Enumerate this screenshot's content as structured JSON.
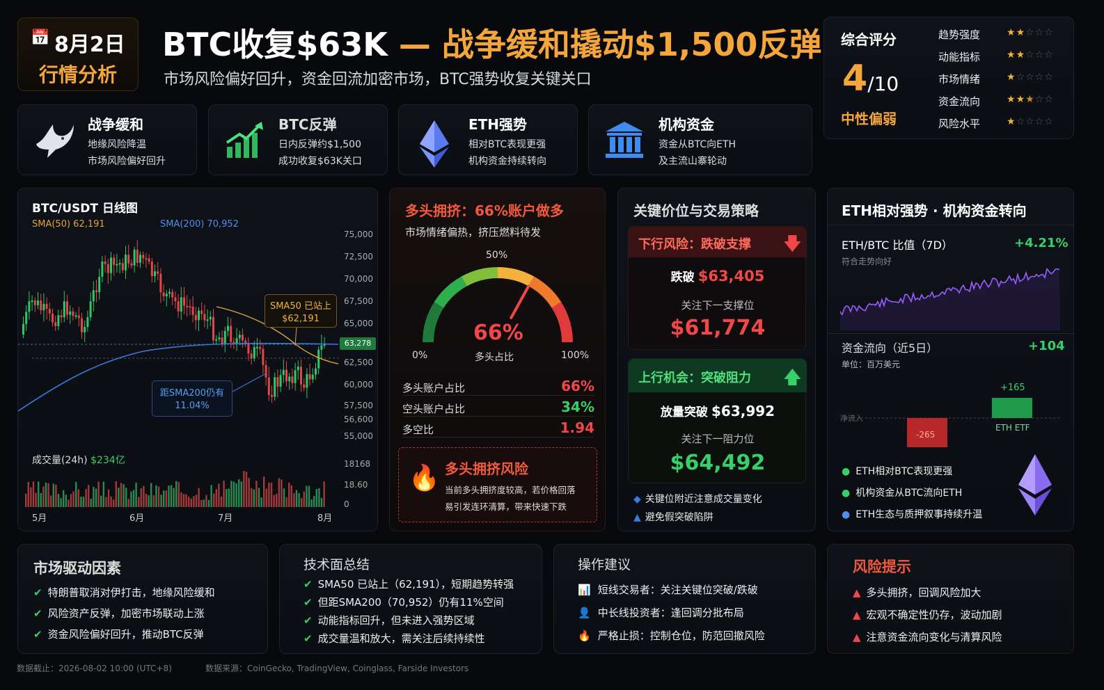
{
  "header": {
    "date": "8月2日",
    "date_sub": "行情分析",
    "title_white": "BTC收复$63K",
    "title_dash": "—",
    "title_orange": "战争缓和撬动$1,500反弹",
    "subtitle": "市场风险偏好回升，资金回流加密市场，BTC强势收复关键关口"
  },
  "score": {
    "label": "综合评分",
    "value": "4",
    "denom": "/10",
    "status": "中性偏弱",
    "metrics": [
      {
        "label": "趋势强度",
        "stars": 2
      },
      {
        "label": "动能指标",
        "stars": 2
      },
      {
        "label": "市场情绪",
        "stars": 1
      },
      {
        "label": "资金流向",
        "stars": 2.5
      },
      {
        "label": "风险水平",
        "stars": 1
      }
    ]
  },
  "highlights": [
    {
      "icon": "dove-icon",
      "title": "战争缓和",
      "line1": "地缘风险降温",
      "line2": "市场风险偏好回升"
    },
    {
      "icon": "bar-chart-up-icon",
      "title": "BTC反弹",
      "line1": "日内反弹约$1,500",
      "line2": "成功收复$63K关口"
    },
    {
      "icon": "eth-diamond-icon",
      "title": "ETH强势",
      "line1": "相对BTC表现更强",
      "line2": "机构资金持续转向"
    },
    {
      "icon": "bank-icon",
      "title": "机构资金",
      "line1": "资金从BTC向ETH",
      "line2": "及主流山寨轮动"
    }
  ],
  "btc_chart": {
    "title": "BTC/USDT 日线图",
    "sma50_label": "SMA(50)  62,191",
    "sma200_label": "SMA(200)  70,952",
    "y_ticks": [
      "75,000",
      "72,500",
      "70,000",
      "67,500",
      "65,000",
      "62,500",
      "60,000",
      "57,500",
      "56,600",
      "55,000"
    ],
    "price_tag": "63,278",
    "ann_sma50_line1": "SMA50 已站上",
    "ann_sma50_line2": "$62,191",
    "ann_sma200_line1": "距SMA200仍有",
    "ann_sma200_line2": "11.04%",
    "volume_label": "成交量(24h)",
    "volume_value": "$234亿",
    "vol_ticks": [
      "18168",
      "18.60",
      "0"
    ],
    "x_ticks": [
      "5月",
      "6月",
      "7月",
      "8月"
    ],
    "colors": {
      "up": "#2fc76a",
      "down": "#e24848",
      "sma50": "#e0a53a",
      "sma200": "#3a78d8"
    }
  },
  "sentiment": {
    "title": "多头拥挤：66%账户做多",
    "subtitle": "市场情绪偏热，挤压燃料待发",
    "gauge_top": "50%",
    "gauge_left": "0%",
    "gauge_right": "100%",
    "gauge_value": "66%",
    "gauge_value_fraction": 0.66,
    "gauge_caption": "多头占比",
    "rows": [
      {
        "label": "多头账户占比",
        "value": "66%"
      },
      {
        "label": "空头账户占比",
        "value": "34%"
      },
      {
        "label": "多空比",
        "value": "1.94"
      }
    ],
    "warn_title": "多头拥挤风险",
    "warn_line1": "当前多头拥挤度较高，若价格回落",
    "warn_line2": "易引发连环清算，带来快速下跌"
  },
  "levels": {
    "title": "关键价位与交易策略",
    "down_title": "下行风险：跌破支撑",
    "down_label": "跌破",
    "down_price": "$63,405",
    "down_next": "关注下一支撑位",
    "down_target": "$61,774",
    "up_title": "上行机会：突破阻力",
    "up_label": "放量突破",
    "up_price": "$63,992",
    "up_next": "关注下一阻力位",
    "up_target": "$64,492",
    "note1": "关键位附近注意成交量变化",
    "note2": "避免假突破陷阱"
  },
  "eth": {
    "title": "ETH相对强势 · 机构资金转向",
    "ratio_label": "ETH/BTC 比值（7D）",
    "ratio_change": "+4.21%",
    "ratio_sub": "符合走势向好",
    "flow_label": "资金流向（近5日）",
    "flow_total": "+104",
    "flow_unit": "单位：百万美元",
    "flow_axis": "净流入",
    "flow_neg_inner": "-265",
    "flow_neg_label": "-265",
    "flow_pos_label": "+165",
    "flow_pos_cat": "ETH ETF",
    "bullets": [
      "ETH相对BTC表现更强",
      "机构资金从BTC流向ETH",
      "ETH生态与质押叙事持续升温"
    ]
  },
  "drivers": {
    "title": "市场驱动因素",
    "items": [
      "特朗普取消对伊打击，地缘风险缓和",
      "风险资产反弹，加密市场联动上涨",
      "资金风险偏好回升，推动BTC反弹"
    ]
  },
  "tech": {
    "title": "技术面总结",
    "items": [
      "SMA50 已站上（62,191），短期趋势转强",
      "但距SMA200（70,952）仍有11%空间",
      "动能指标回升，但未进入强势区域",
      "成交量温和放大，需关注后续持续性"
    ]
  },
  "ops": {
    "title": "操作建议",
    "items": [
      {
        "icon": "trader-icon",
        "text": "短线交易者：关注关键位突破/跌破"
      },
      {
        "icon": "investor-icon",
        "text": "中长线投资者：逢回调分批布局"
      },
      {
        "icon": "stop-loss-icon",
        "text": "严格止损：控制仓位，防范回撤风险"
      }
    ]
  },
  "risk": {
    "title": "风险提示",
    "items": [
      "多头拥挤，回调风险加大",
      "宏观不确定性仍存，波动加剧",
      "注意资金流向变化与清算风险"
    ]
  },
  "footer": {
    "updated": "数据截止：2026-08-02 10:00 (UTC+8)",
    "source": "数据来源：CoinGecko, TradingView, Coinglass, Farside Investors"
  }
}
